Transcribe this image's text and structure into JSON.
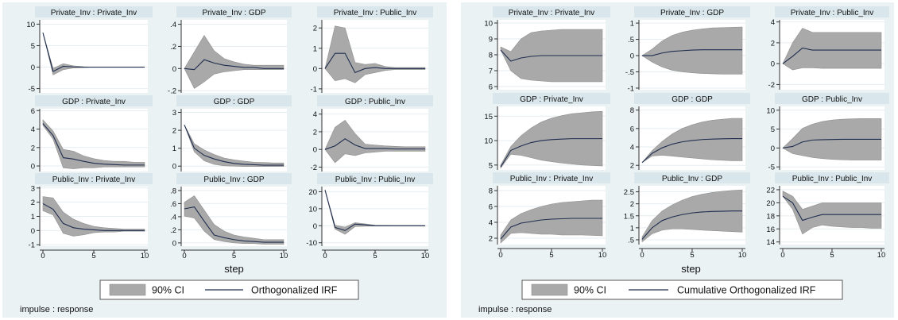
{
  "chart_data": [
    {
      "type": "line",
      "id": "left",
      "xlabel": "step",
      "x": [
        0,
        1,
        2,
        3,
        4,
        5,
        6,
        7,
        8,
        9,
        10
      ],
      "xticks": [
        0,
        5,
        10
      ],
      "legend": {
        "ci_label": "90% CI",
        "line_label": "Orthogonalized IRF"
      },
      "note": "impulse : response",
      "panels": [
        {
          "title": "Private_Inv : Private_Inv",
          "yticks": [
            "10",
            "5",
            "0",
            "-5"
          ],
          "ylim": [
            -6,
            11
          ],
          "irf": [
            8,
            -1,
            0.2,
            0.05,
            0,
            0,
            0,
            0,
            0,
            0,
            0
          ],
          "lower": [
            8,
            -1.8,
            -0.6,
            -0.2,
            -0.1,
            0,
            0,
            0,
            0,
            0,
            0
          ],
          "upper": [
            8,
            -0.3,
            0.8,
            0.3,
            0.1,
            0,
            0,
            0,
            0,
            0,
            0
          ]
        },
        {
          "title": "Private_Inv : GDP",
          "yticks": [
            ".4",
            ".2",
            "0",
            "-.2"
          ],
          "ylim": [
            -0.22,
            0.44
          ],
          "irf": [
            0,
            -0.01,
            0.08,
            0.05,
            0.03,
            0.02,
            0.01,
            0.01,
            0,
            0,
            0
          ],
          "lower": [
            0,
            -0.18,
            -0.12,
            -0.05,
            -0.03,
            -0.02,
            -0.01,
            -0.01,
            -0.01,
            -0.01,
            -0.01
          ],
          "upper": [
            0,
            0.15,
            0.3,
            0.16,
            0.09,
            0.06,
            0.04,
            0.03,
            0.03,
            0.03,
            0.03
          ]
        },
        {
          "title": "Private_Inv : Public_Inv",
          "yticks": [
            "2",
            "1",
            "0",
            "-1"
          ],
          "ylim": [
            -1.2,
            2.4
          ],
          "irf": [
            0,
            0.75,
            0.75,
            -0.2,
            0,
            0.05,
            0,
            0,
            0,
            0,
            0
          ],
          "lower": [
            0,
            -0.6,
            -0.5,
            -0.7,
            -0.3,
            -0.2,
            -0.1,
            -0.05,
            -0.05,
            -0.05,
            -0.05
          ],
          "upper": [
            0,
            2.1,
            2.0,
            0.3,
            0.2,
            0.25,
            0.1,
            0.05,
            0.05,
            0.05,
            0.05
          ]
        },
        {
          "title": "GDP : Private_Inv",
          "yticks": [
            "6",
            "4",
            "2",
            "0"
          ],
          "ylim": [
            -0.6,
            6.2
          ],
          "irf": [
            4.6,
            3.3,
            0.9,
            0.75,
            0.5,
            0.3,
            0.2,
            0.15,
            0.1,
            0.1,
            0.1
          ],
          "lower": [
            4.4,
            2.9,
            -0.2,
            -0.3,
            -0.2,
            -0.2,
            -0.1,
            -0.1,
            -0.1,
            -0.1,
            -0.1
          ],
          "upper": [
            5.0,
            3.8,
            1.8,
            1.6,
            1.1,
            0.8,
            0.6,
            0.5,
            0.5,
            0.4,
            0.4
          ]
        },
        {
          "title": "GDP : GDP",
          "yticks": [
            "3",
            "2",
            "1",
            "0"
          ],
          "ylim": [
            -0.3,
            3.2
          ],
          "irf": [
            2.3,
            1.0,
            0.6,
            0.4,
            0.25,
            0.15,
            0.1,
            0.08,
            0.05,
            0.05,
            0.05
          ],
          "lower": [
            2.3,
            0.8,
            0.3,
            0.1,
            0.02,
            0,
            -0.02,
            -0.02,
            -0.02,
            -0.02,
            -0.02
          ],
          "upper": [
            2.3,
            1.25,
            0.9,
            0.65,
            0.45,
            0.35,
            0.28,
            0.22,
            0.2,
            0.18,
            0.18
          ]
        },
        {
          "title": "GDP : Public_Inv",
          "yticks": [
            "4",
            "2",
            "0",
            "-2"
          ],
          "ylim": [
            -2.5,
            4.6
          ],
          "irf": [
            0,
            0.4,
            1.2,
            0.5,
            0.1,
            0.1,
            0.1,
            0.05,
            0.05,
            0.05,
            0.05
          ],
          "lower": [
            0,
            -1.5,
            -0.5,
            -0.7,
            -0.4,
            -0.3,
            -0.2,
            -0.2,
            -0.2,
            -0.2,
            -0.2
          ],
          "upper": [
            0,
            2.5,
            3.3,
            1.8,
            0.6,
            0.5,
            0.4,
            0.35,
            0.3,
            0.3,
            0.3
          ]
        },
        {
          "title": "Public_Inv : Private_Inv",
          "yticks": [
            "3",
            "2",
            "1",
            "0",
            "-1"
          ],
          "ylim": [
            -1.1,
            3.1
          ],
          "irf": [
            1.9,
            1.5,
            0.5,
            0.2,
            0.1,
            0.05,
            0,
            0,
            0,
            0,
            0
          ],
          "lower": [
            1.4,
            1.1,
            -0.2,
            -0.4,
            -0.3,
            -0.15,
            -0.1,
            -0.1,
            -0.05,
            -0.05,
            -0.05
          ],
          "upper": [
            2.4,
            2.3,
            1.3,
            0.8,
            0.5,
            0.3,
            0.2,
            0.15,
            0.1,
            0.1,
            0.1
          ]
        },
        {
          "title": "Public_Inv : GDP",
          "yticks": [
            ".8",
            ".6",
            ".4",
            ".2",
            "0"
          ],
          "ylim": [
            -0.05,
            0.86
          ],
          "irf": [
            0.52,
            0.55,
            0.33,
            0.12,
            0.08,
            0.05,
            0.03,
            0.02,
            0.01,
            0.01,
            0.01
          ],
          "lower": [
            0.41,
            0.38,
            0.18,
            0.05,
            0.02,
            0,
            -0.01,
            -0.01,
            -0.02,
            -0.02,
            -0.02
          ],
          "upper": [
            0.62,
            0.72,
            0.5,
            0.28,
            0.18,
            0.12,
            0.09,
            0.07,
            0.05,
            0.05,
            0.05
          ]
        },
        {
          "title": "Public_Inv : Public_Inv",
          "yticks": [
            "20",
            "10",
            "0",
            "-10"
          ],
          "ylim": [
            -12,
            23
          ],
          "irf": [
            21,
            -1,
            -2.8,
            1.0,
            0.5,
            0,
            0,
            0,
            0,
            0,
            0
          ],
          "lower": [
            21,
            -2,
            -5,
            -0.5,
            -0.3,
            -0.2,
            -0.1,
            -0.1,
            -0.1,
            -0.1,
            -0.1
          ],
          "upper": [
            21,
            0.3,
            -0.8,
            1.8,
            1.1,
            0.3,
            0.2,
            0.1,
            0.1,
            0.1,
            0.1
          ]
        }
      ]
    },
    {
      "type": "line",
      "id": "right",
      "xlabel": "step",
      "x": [
        0,
        1,
        2,
        3,
        4,
        5,
        6,
        7,
        8,
        9,
        10
      ],
      "xticks": [
        0,
        5,
        10
      ],
      "legend": {
        "ci_label": "90% CI",
        "line_label": "Cumulative Orthogonalized IRF"
      },
      "note": "impulse : response",
      "panels": [
        {
          "title": "Private_Inv : Private_Inv",
          "yticks": [
            "10",
            "9",
            "8",
            "7",
            "6"
          ],
          "ylim": [
            5.8,
            10.2
          ],
          "irf": [
            8.3,
            7.6,
            7.8,
            7.9,
            7.95,
            7.95,
            7.95,
            7.95,
            7.95,
            7.95,
            7.95
          ],
          "lower": [
            8.3,
            7.0,
            6.5,
            6.4,
            6.35,
            6.3,
            6.3,
            6.3,
            6.3,
            6.3,
            6.3
          ],
          "upper": [
            8.5,
            8.2,
            9.0,
            9.4,
            9.5,
            9.55,
            9.6,
            9.6,
            9.6,
            9.6,
            9.6
          ]
        },
        {
          "title": "Private_Inv : GDP",
          "yticks": [
            "1",
            ".5",
            "0",
            "-.5",
            "-1"
          ],
          "ylim": [
            -1.05,
            1.1
          ],
          "irf": [
            0,
            0,
            0.08,
            0.13,
            0.15,
            0.17,
            0.18,
            0.18,
            0.18,
            0.18,
            0.18
          ],
          "lower": [
            0,
            -0.2,
            -0.35,
            -0.45,
            -0.5,
            -0.53,
            -0.55,
            -0.56,
            -0.57,
            -0.57,
            -0.57
          ],
          "upper": [
            0,
            0.2,
            0.45,
            0.62,
            0.72,
            0.78,
            0.82,
            0.85,
            0.86,
            0.87,
            0.88
          ]
        },
        {
          "title": "Private_Inv : Public_Inv",
          "yticks": [
            "4",
            "2",
            "0",
            "-2"
          ],
          "ylim": [
            -2.5,
            4.2
          ],
          "irf": [
            0,
            0.7,
            1.5,
            1.3,
            1.3,
            1.3,
            1.3,
            1.3,
            1.3,
            1.3,
            1.3
          ],
          "lower": [
            0,
            -0.6,
            -0.4,
            -0.4,
            -0.45,
            -0.45,
            -0.45,
            -0.45,
            -0.45,
            -0.45,
            -0.45
          ],
          "upper": [
            0,
            2.0,
            3.4,
            3.0,
            3.0,
            3.0,
            3.0,
            3.0,
            3.0,
            3.0,
            3.0
          ]
        },
        {
          "title": "GDP : Private_Inv",
          "yticks": [
            "15",
            "10",
            "5"
          ],
          "ylim": [
            4,
            17
          ],
          "irf": [
            4.6,
            8.0,
            8.9,
            9.6,
            10.0,
            10.2,
            10.3,
            10.4,
            10.4,
            10.4,
            10.4
          ],
          "lower": [
            4.4,
            7.2,
            7.0,
            6.5,
            6.0,
            5.7,
            5.4,
            5.2,
            5.0,
            4.9,
            4.8
          ],
          "upper": [
            5.0,
            8.8,
            11.0,
            12.6,
            13.8,
            14.6,
            15.1,
            15.5,
            15.7,
            15.9,
            16.0
          ]
        },
        {
          "title": "GDP : GDP",
          "yticks": [
            "8",
            "6",
            "4",
            "2"
          ],
          "ylim": [
            1.5,
            8.4
          ],
          "irf": [
            2.3,
            3.3,
            3.9,
            4.3,
            4.55,
            4.7,
            4.8,
            4.85,
            4.88,
            4.9,
            4.9
          ],
          "lower": [
            2.3,
            3.0,
            3.1,
            3.0,
            2.9,
            2.8,
            2.7,
            2.6,
            2.55,
            2.5,
            2.5
          ],
          "upper": [
            2.3,
            3.6,
            4.6,
            5.4,
            6.0,
            6.4,
            6.7,
            6.9,
            7.0,
            7.1,
            7.1
          ]
        },
        {
          "title": "GDP : Public_Inv",
          "yticks": [
            "10",
            "5",
            "0",
            "-5"
          ],
          "ylim": [
            -5.8,
            11
          ],
          "irf": [
            0,
            0.4,
            1.6,
            2.1,
            2.2,
            2.25,
            2.3,
            2.3,
            2.3,
            2.3,
            2.3
          ],
          "lower": [
            0,
            -1.5,
            -2.0,
            -2.5,
            -2.8,
            -3.0,
            -3.1,
            -3.2,
            -3.2,
            -3.2,
            -3.2
          ],
          "upper": [
            0,
            2.5,
            5.2,
            6.3,
            7.0,
            7.4,
            7.6,
            7.7,
            7.8,
            7.8,
            7.8
          ]
        },
        {
          "title": "Public_Inv : Private_Inv",
          "yticks": [
            "8",
            "6",
            "4",
            "2"
          ],
          "ylim": [
            1.2,
            8.6
          ],
          "irf": [
            1.9,
            3.4,
            3.9,
            4.1,
            4.3,
            4.4,
            4.45,
            4.5,
            4.5,
            4.5,
            4.5
          ],
          "lower": [
            1.4,
            2.6,
            2.7,
            2.6,
            2.5,
            2.5,
            2.4,
            2.4,
            2.4,
            2.35,
            2.3
          ],
          "upper": [
            2.4,
            4.3,
            5.1,
            5.6,
            6.0,
            6.3,
            6.5,
            6.6,
            6.7,
            6.8,
            6.8
          ]
        },
        {
          "title": "Public_Inv : GDP",
          "yticks": [
            "2.5",
            "2",
            "1.5",
            "1",
            ".5"
          ],
          "ylim": [
            0.3,
            2.75
          ],
          "irf": [
            0.52,
            1.0,
            1.3,
            1.45,
            1.55,
            1.62,
            1.66,
            1.68,
            1.69,
            1.7,
            1.7
          ],
          "lower": [
            0.41,
            0.75,
            0.9,
            0.95,
            0.95,
            0.93,
            0.9,
            0.88,
            0.86,
            0.84,
            0.82
          ],
          "upper": [
            0.62,
            1.3,
            1.7,
            1.95,
            2.15,
            2.3,
            2.4,
            2.47,
            2.52,
            2.56,
            2.58
          ]
        },
        {
          "title": "Public_Inv : Public_Inv",
          "yticks": [
            "22",
            "20",
            "18",
            "16",
            "14"
          ],
          "ylim": [
            13.6,
            22.6
          ],
          "irf": [
            21,
            20.0,
            17.3,
            17.8,
            18.2,
            18.2,
            18.2,
            18.2,
            18.2,
            18.2,
            18.2
          ],
          "lower": [
            21,
            19.0,
            15.2,
            16.2,
            16.6,
            16.4,
            16.3,
            16.2,
            16.2,
            16.1,
            16.1
          ],
          "upper": [
            21.8,
            21.0,
            19.0,
            19.5,
            20.0,
            20.0,
            20.0,
            20.0,
            20.0,
            20.0,
            20.0
          ]
        }
      ]
    }
  ]
}
